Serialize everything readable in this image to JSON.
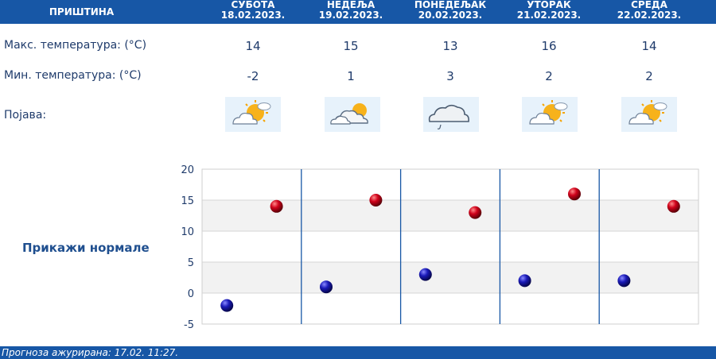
{
  "header": {
    "city": "ПРИШТИНА",
    "days": [
      {
        "name": "СУБОТА",
        "date": "18.02.2023."
      },
      {
        "name": "НЕДЕЉА",
        "date": "19.02.2023."
      },
      {
        "name": "ПОНЕДЕЉАК",
        "date": "20.02.2023."
      },
      {
        "name": "УТОРАК",
        "date": "21.02.2023."
      },
      {
        "name": "СРЕДА",
        "date": "22.02.2023."
      }
    ]
  },
  "rows": {
    "max_label": "Макс. температура: (°C)",
    "min_label": "Мин. температура: (°C)",
    "phenomenon_label": "Појава:",
    "max": [
      "14",
      "15",
      "13",
      "16",
      "14"
    ],
    "min": [
      "-2",
      "1",
      "3",
      "2",
      "2"
    ],
    "phenomenon_icons": [
      "sun-cloud-icon",
      "cloud-sun-icon",
      "cloud-rain-icon",
      "sun-cloud-icon",
      "sun-cloud-icon"
    ]
  },
  "show_normals": "Прикажи нормале",
  "footer": {
    "text": "Прогноза ажурирана:  17.02. 11:27."
  },
  "colors": {
    "header": "#1757a6",
    "max_dot": "#d0021b",
    "min_dot": "#1a1ab8",
    "text": "#1f3b6b"
  },
  "chart_data": {
    "type": "scatter",
    "categories": [
      "18.02.2023.",
      "19.02.2023.",
      "20.02.2023.",
      "21.02.2023.",
      "22.02.2023."
    ],
    "series": [
      {
        "values": [
          14,
          15,
          13,
          16,
          14
        ]
      },
      {
        "values": [
          -2,
          1,
          3,
          2,
          2
        ]
      }
    ],
    "ylim": [
      -5,
      20
    ],
    "yticks": [
      20,
      15,
      10,
      5,
      0,
      -5
    ],
    "grid": true
  }
}
